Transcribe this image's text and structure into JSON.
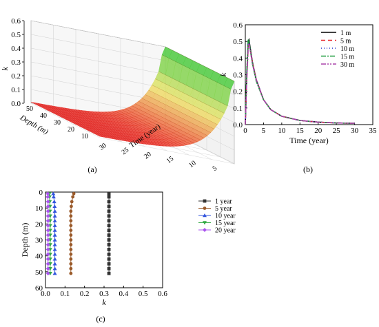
{
  "panel_labels": {
    "a": "(a)",
    "b": "(b)",
    "c": "(c)"
  },
  "chart_data": [
    {
      "id": "a",
      "type": "surface",
      "zlabel": "k",
      "xlabel": "Depth (m)",
      "ylabel": "Time (year)",
      "z_ticks": [
        "0.0",
        "0.1",
        "0.2",
        "0.3",
        "0.4",
        "0.5",
        "0.6"
      ],
      "depth_ticks": [
        "50",
        "40",
        "30",
        "20",
        "10"
      ],
      "time_ticks": [
        "30",
        "25",
        "20",
        "15",
        "10",
        "5"
      ],
      "colors": {
        "low": "#ee2a2a",
        "mid": "#f3f18a",
        "high": "#33cc33"
      }
    },
    {
      "id": "b",
      "type": "line",
      "xlabel": "Time (year)",
      "ylabel": "k",
      "xlim": [
        0,
        35
      ],
      "ylim": [
        0,
        0.6
      ],
      "x_ticks": [
        "0",
        "5",
        "10",
        "15",
        "20",
        "25",
        "30",
        "35"
      ],
      "y_ticks": [
        "0.0",
        "0.1",
        "0.2",
        "0.3",
        "0.4",
        "0.5",
        "0.6"
      ],
      "legend_position": "top-right",
      "series": [
        {
          "name": "1 m",
          "color": "#000000",
          "dash": "",
          "x": [
            0,
            0.4,
            0.8,
            1,
            2,
            3,
            5,
            7,
            10,
            15,
            20,
            25,
            30
          ],
          "y": [
            0,
            0.3,
            0.5,
            0.51,
            0.37,
            0.27,
            0.15,
            0.09,
            0.05,
            0.025,
            0.015,
            0.01,
            0.008
          ]
        },
        {
          "name": "5 m",
          "color": "#e8262a",
          "dash": "6,4",
          "x": [
            0,
            0.4,
            0.8,
            1,
            2,
            3,
            5,
            7,
            10,
            15,
            20,
            25,
            30
          ],
          "y": [
            0,
            0.28,
            0.47,
            0.49,
            0.37,
            0.27,
            0.15,
            0.09,
            0.05,
            0.025,
            0.015,
            0.01,
            0.008
          ]
        },
        {
          "name": "10 m",
          "color": "#2233cc",
          "dash": "1,3",
          "x": [
            0,
            0.4,
            0.8,
            1,
            2,
            3,
            5,
            7,
            10,
            15,
            20,
            25,
            30
          ],
          "y": [
            0,
            0.3,
            0.5,
            0.5,
            0.36,
            0.27,
            0.15,
            0.09,
            0.05,
            0.025,
            0.015,
            0.01,
            0.008
          ]
        },
        {
          "name": "15 m",
          "color": "#1a9a3a",
          "dash": "7,2,2,2",
          "x": [
            0,
            0.4,
            0.8,
            1,
            2,
            3,
            5,
            7,
            10,
            15,
            20,
            25,
            30
          ],
          "y": [
            0,
            0.32,
            0.51,
            0.5,
            0.36,
            0.26,
            0.15,
            0.09,
            0.05,
            0.025,
            0.015,
            0.01,
            0.008
          ]
        },
        {
          "name": "30 m",
          "color": "#aa44aa",
          "dash": "7,2,2,2,2,2",
          "x": [
            0,
            0.4,
            0.8,
            1,
            2,
            3,
            5,
            7,
            10,
            15,
            20,
            25,
            30
          ],
          "y": [
            0,
            0.26,
            0.46,
            0.49,
            0.36,
            0.27,
            0.15,
            0.09,
            0.05,
            0.025,
            0.015,
            0.01,
            0.008
          ]
        }
      ]
    },
    {
      "id": "c",
      "type": "line",
      "xlabel": "k",
      "ylabel": "Depth (m)",
      "xlim": [
        0,
        0.6
      ],
      "ylim": [
        0,
        60
      ],
      "y_inverted": true,
      "x_ticks": [
        "0.0",
        "0.1",
        "0.2",
        "0.3",
        "0.4",
        "0.5",
        "0.6"
      ],
      "y_ticks": [
        "0",
        "10",
        "20",
        "30",
        "40",
        "50",
        "60"
      ],
      "legend_position": "top-right",
      "depths": [
        1,
        3,
        6,
        9,
        12,
        15,
        18,
        21,
        24,
        27,
        30,
        33,
        36,
        39,
        42,
        45,
        48,
        51
      ],
      "series": [
        {
          "name": "1 year",
          "color": "#333333",
          "marker": "square",
          "k": [
            0.325,
            0.325,
            0.325,
            0.325,
            0.325,
            0.325,
            0.325,
            0.325,
            0.325,
            0.325,
            0.325,
            0.325,
            0.325,
            0.325,
            0.325,
            0.325,
            0.325,
            0.325
          ]
        },
        {
          "name": "5 year",
          "color": "#9a5a2a",
          "marker": "circle",
          "k": [
            0.145,
            0.14,
            0.135,
            0.132,
            0.13,
            0.13,
            0.13,
            0.13,
            0.13,
            0.13,
            0.13,
            0.13,
            0.13,
            0.13,
            0.13,
            0.13,
            0.13,
            0.13
          ]
        },
        {
          "name": "10 year",
          "color": "#3355dd",
          "marker": "triangle-up",
          "k": [
            0.04,
            0.042,
            0.045,
            0.047,
            0.048,
            0.048,
            0.048,
            0.048,
            0.048,
            0.048,
            0.048,
            0.048,
            0.048,
            0.048,
            0.048,
            0.048,
            0.048,
            0.048
          ]
        },
        {
          "name": "15 year",
          "color": "#33aa44",
          "marker": "triangle-down",
          "k": [
            0.02,
            0.021,
            0.022,
            0.023,
            0.023,
            0.024,
            0.024,
            0.024,
            0.024,
            0.024,
            0.024,
            0.024,
            0.024,
            0.024,
            0.024,
            0.024,
            0.024,
            0.024
          ]
        },
        {
          "name": "20 year",
          "color": "#aa55ee",
          "marker": "diamond",
          "k": [
            0.012,
            0.012,
            0.013,
            0.013,
            0.013,
            0.013,
            0.013,
            0.013,
            0.013,
            0.013,
            0.013,
            0.013,
            0.013,
            0.013,
            0.013,
            0.013,
            0.013,
            0.013
          ]
        }
      ]
    }
  ]
}
